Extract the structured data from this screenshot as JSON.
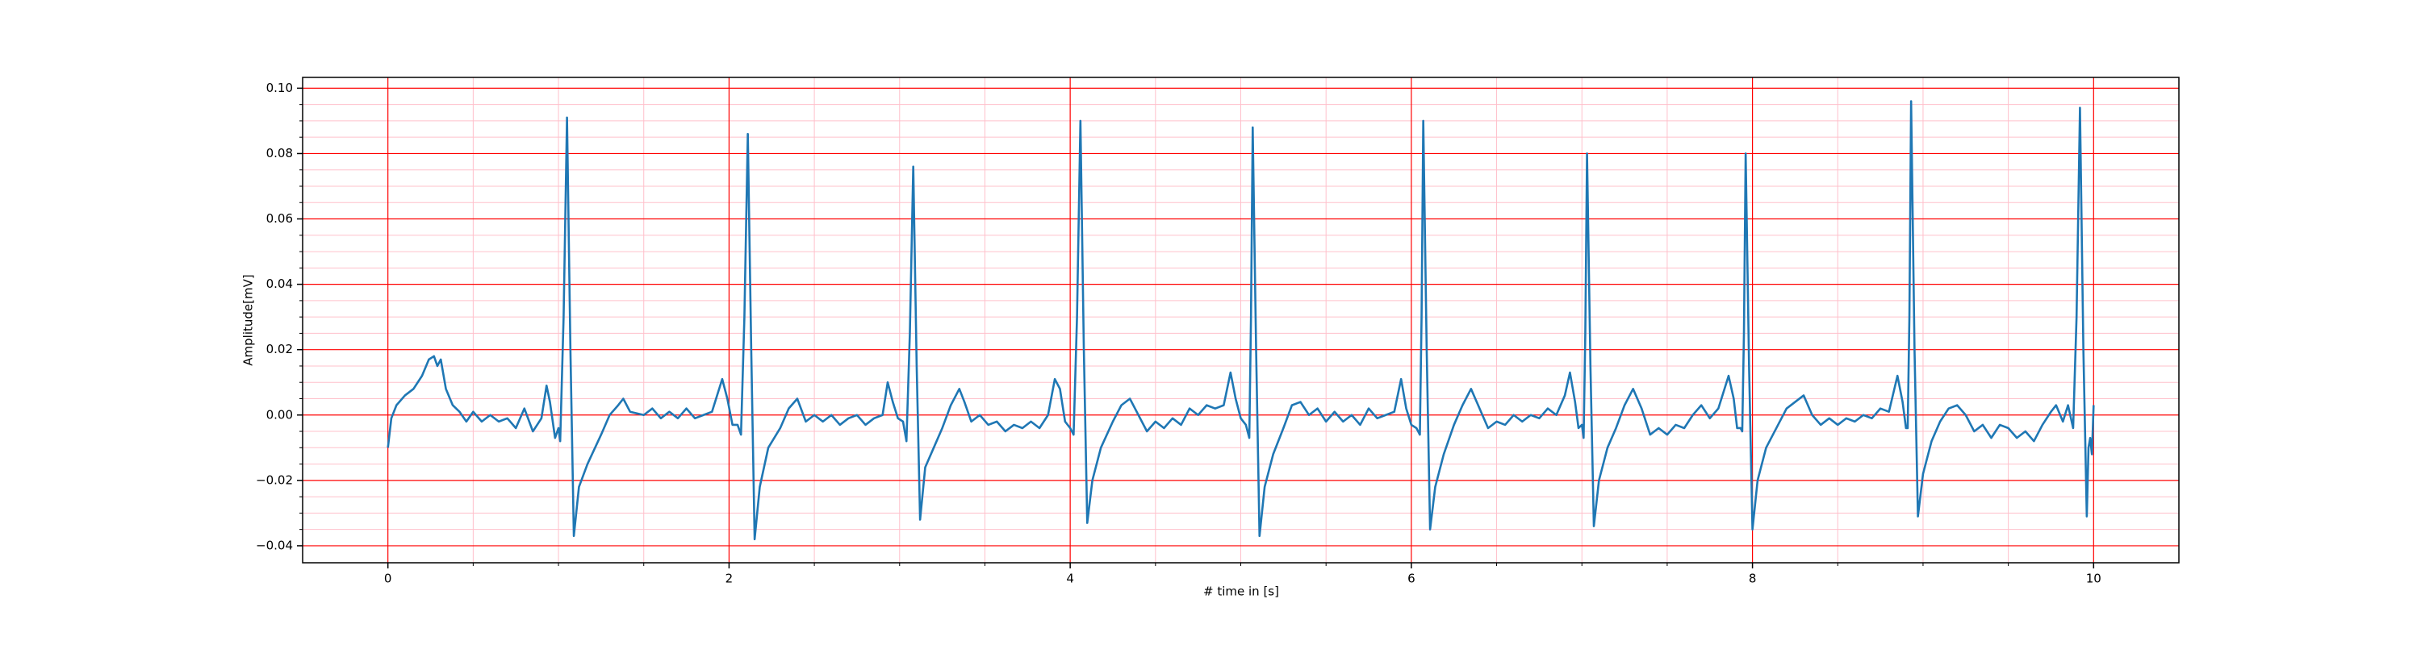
{
  "chart_data": {
    "type": "line",
    "xlabel": "# time in [s]",
    "ylabel": "Amplitude[mV]",
    "x": [
      0.0,
      0.02,
      0.05,
      0.1,
      0.15,
      0.2,
      0.24,
      0.27,
      0.29,
      0.31,
      0.34,
      0.38,
      0.42,
      0.46,
      0.5,
      0.55,
      0.6,
      0.65,
      0.7,
      0.75,
      0.8,
      0.85,
      0.9,
      0.93,
      0.95,
      0.98,
      1.0,
      1.01,
      1.03,
      1.05,
      1.07,
      1.09,
      1.12,
      1.17,
      1.25,
      1.3,
      1.35,
      1.38,
      1.42,
      1.5,
      1.55,
      1.6,
      1.65,
      1.7,
      1.75,
      1.8,
      1.85,
      1.9,
      1.96,
      1.99,
      2.02,
      2.05,
      2.07,
      2.09,
      2.11,
      2.13,
      2.15,
      2.18,
      2.23,
      2.3,
      2.35,
      2.4,
      2.45,
      2.5,
      2.55,
      2.6,
      2.65,
      2.7,
      2.75,
      2.8,
      2.85,
      2.9,
      2.93,
      2.96,
      2.99,
      3.02,
      3.04,
      3.06,
      3.08,
      3.1,
      3.12,
      3.15,
      3.2,
      3.25,
      3.3,
      3.35,
      3.38,
      3.42,
      3.47,
      3.52,
      3.57,
      3.62,
      3.67,
      3.72,
      3.77,
      3.82,
      3.87,
      3.91,
      3.94,
      3.97,
      4.0,
      4.02,
      4.04,
      4.06,
      4.08,
      4.1,
      4.13,
      4.18,
      4.25,
      4.3,
      4.35,
      4.4,
      4.45,
      4.5,
      4.55,
      4.6,
      4.65,
      4.7,
      4.75,
      4.8,
      4.85,
      4.9,
      4.94,
      4.97,
      5.0,
      5.03,
      5.05,
      5.06,
      5.07,
      5.09,
      5.11,
      5.14,
      5.19,
      5.25,
      5.3,
      5.35,
      5.4,
      5.45,
      5.5,
      5.55,
      5.6,
      5.65,
      5.7,
      5.75,
      5.8,
      5.85,
      5.9,
      5.94,
      5.97,
      6.0,
      6.03,
      6.05,
      6.06,
      6.07,
      6.09,
      6.11,
      6.14,
      6.19,
      6.25,
      6.3,
      6.35,
      6.4,
      6.45,
      6.5,
      6.55,
      6.6,
      6.65,
      6.7,
      6.75,
      6.8,
      6.85,
      6.9,
      6.93,
      6.96,
      6.98,
      7.0,
      7.01,
      7.02,
      7.03,
      7.05,
      7.07,
      7.1,
      7.15,
      7.2,
      7.25,
      7.3,
      7.35,
      7.4,
      7.45,
      7.5,
      7.55,
      7.6,
      7.65,
      7.7,
      7.75,
      7.8,
      7.86,
      7.89,
      7.91,
      7.93,
      7.94,
      7.95,
      7.96,
      7.98,
      8.0,
      8.03,
      8.08,
      8.15,
      8.2,
      8.25,
      8.3,
      8.35,
      8.4,
      8.45,
      8.5,
      8.55,
      8.6,
      8.65,
      8.7,
      8.75,
      8.8,
      8.85,
      8.88,
      8.9,
      8.91,
      8.92,
      8.93,
      8.95,
      8.97,
      9.0,
      9.05,
      9.1,
      9.15,
      9.2,
      9.25,
      9.3,
      9.35,
      9.4,
      9.45,
      9.5,
      9.55,
      9.6,
      9.65,
      9.7,
      9.75,
      9.78,
      9.82,
      9.85,
      9.88,
      9.9,
      9.92,
      9.94,
      9.96,
      9.97,
      9.98,
      9.99,
      10.0
    ],
    "series": [
      {
        "color": "#1f77b4",
        "values": [
          -0.01,
          -0.001,
          0.003,
          0.006,
          0.008,
          0.012,
          0.017,
          0.018,
          0.015,
          0.017,
          0.008,
          0.003,
          0.001,
          -0.002,
          0.001,
          -0.002,
          0.0,
          -0.002,
          -0.001,
          -0.004,
          0.002,
          -0.005,
          -0.001,
          0.009,
          0.004,
          -0.007,
          -0.004,
          -0.008,
          0.03,
          0.091,
          0.02,
          -0.037,
          -0.022,
          -0.015,
          -0.006,
          0.0,
          0.003,
          0.005,
          0.001,
          0.0,
          0.002,
          -0.001,
          0.001,
          -0.001,
          0.002,
          -0.001,
          0.0,
          0.001,
          0.011,
          0.005,
          -0.003,
          -0.003,
          -0.006,
          0.03,
          0.086,
          0.02,
          -0.038,
          -0.022,
          -0.01,
          -0.004,
          0.002,
          0.005,
          -0.002,
          0.0,
          -0.002,
          0.0,
          -0.003,
          -0.001,
          0.0,
          -0.003,
          -0.001,
          0.0,
          0.01,
          0.004,
          -0.001,
          -0.002,
          -0.008,
          0.025,
          0.076,
          0.015,
          -0.032,
          -0.016,
          -0.01,
          -0.004,
          0.003,
          0.008,
          0.004,
          -0.002,
          0.0,
          -0.003,
          -0.002,
          -0.005,
          -0.003,
          -0.004,
          -0.002,
          -0.004,
          0.0,
          0.011,
          0.008,
          -0.002,
          -0.004,
          -0.006,
          0.03,
          0.09,
          0.02,
          -0.033,
          -0.02,
          -0.01,
          -0.002,
          0.003,
          0.005,
          0.0,
          -0.005,
          -0.002,
          -0.004,
          -0.001,
          -0.003,
          0.002,
          0.0,
          0.003,
          0.002,
          0.003,
          0.013,
          0.005,
          -0.001,
          -0.003,
          -0.007,
          0.03,
          0.088,
          0.02,
          -0.037,
          -0.022,
          -0.012,
          -0.004,
          0.003,
          0.004,
          0.0,
          0.002,
          -0.002,
          0.001,
          -0.002,
          0.0,
          -0.003,
          0.002,
          -0.001,
          0.0,
          0.001,
          0.011,
          0.002,
          -0.003,
          -0.004,
          -0.006,
          0.03,
          0.09,
          0.02,
          -0.035,
          -0.022,
          -0.012,
          -0.003,
          0.003,
          0.008,
          0.002,
          -0.004,
          -0.002,
          -0.003,
          0.0,
          -0.002,
          0.0,
          -0.001,
          0.002,
          0.0,
          0.006,
          0.013,
          0.004,
          -0.004,
          -0.003,
          -0.007,
          0.025,
          0.08,
          0.015,
          -0.034,
          -0.02,
          -0.01,
          -0.004,
          0.003,
          0.008,
          0.002,
          -0.006,
          -0.004,
          -0.006,
          -0.003,
          -0.004,
          0.0,
          0.003,
          -0.001,
          0.002,
          0.012,
          0.005,
          -0.004,
          -0.004,
          -0.005,
          0.025,
          0.08,
          0.015,
          -0.035,
          -0.02,
          -0.01,
          -0.003,
          0.002,
          0.004,
          0.006,
          0.0,
          -0.003,
          -0.001,
          -0.003,
          -0.001,
          -0.002,
          0.0,
          -0.001,
          0.002,
          0.001,
          0.012,
          0.004,
          -0.004,
          -0.004,
          0.03,
          0.096,
          0.02,
          -0.031,
          -0.018,
          -0.008,
          -0.002,
          0.002,
          0.003,
          0.0,
          -0.005,
          -0.003,
          -0.007,
          -0.003,
          -0.004,
          -0.007,
          -0.005,
          -0.008,
          -0.003,
          0.001,
          0.003,
          -0.002,
          0.003,
          -0.004,
          0.03,
          0.094,
          0.02,
          -0.031,
          -0.01,
          -0.007,
          -0.012,
          0.003
        ]
      }
    ],
    "xlim": [
      -0.5,
      10.5
    ],
    "ylim": [
      -0.0452,
      0.1033
    ],
    "xticks": [
      0,
      2,
      4,
      6,
      8,
      10
    ],
    "yticks": [
      {
        "value": -0.04,
        "label": "−0.04"
      },
      {
        "value": -0.02,
        "label": "−0.02"
      },
      {
        "value": 0,
        "label": "0.00"
      },
      {
        "value": 0.02,
        "label": "0.02"
      },
      {
        "value": 0.04,
        "label": "0.04"
      },
      {
        "value": 0.06,
        "label": "0.06"
      },
      {
        "value": 0.08,
        "label": "0.08"
      },
      {
        "value": 0.1,
        "label": "0.10"
      }
    ],
    "xminorticks": [
      0.5,
      1,
      1.5,
      2.5,
      3,
      3.5,
      4.5,
      5,
      5.5,
      6.5,
      7,
      7.5,
      8.5,
      9,
      9.5
    ],
    "yminorticks": [
      -0.035,
      -0.03,
      -0.025,
      -0.015,
      -0.01,
      -0.005,
      0.005,
      0.01,
      0.015,
      0.025,
      0.03,
      0.035,
      0.045,
      0.05,
      0.055,
      0.065,
      0.07,
      0.075,
      0.085,
      0.09,
      0.095
    ],
    "grid": true,
    "grid_color": "#ff0000",
    "minor_grid_color": "#ffc0cb"
  }
}
